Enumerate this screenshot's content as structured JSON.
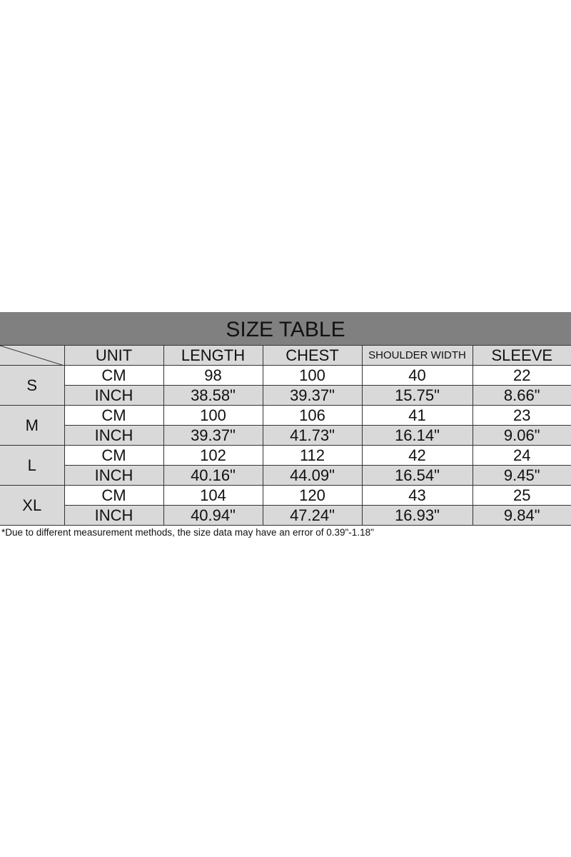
{
  "title": "SIZE TABLE",
  "headers": [
    "UNIT",
    "LENGTH",
    "CHEST",
    "SHOULDER WIDTH",
    "SLEEVE"
  ],
  "rows": [
    {
      "size": "S",
      "cm": {
        "unit": "CM",
        "length": "98",
        "chest": "100",
        "shoulder": "40",
        "sleeve": "22"
      },
      "inch": {
        "unit": "INCH",
        "length": "38.58\"",
        "chest": "39.37\"",
        "shoulder": "15.75\"",
        "sleeve": "8.66\""
      }
    },
    {
      "size": "M",
      "cm": {
        "unit": "CM",
        "length": "100",
        "chest": "106",
        "shoulder": "41",
        "sleeve": "23"
      },
      "inch": {
        "unit": "INCH",
        "length": "39.37\"",
        "chest": "41.73\"",
        "shoulder": "16.14\"",
        "sleeve": "9.06\""
      }
    },
    {
      "size": "L",
      "cm": {
        "unit": "CM",
        "length": "102",
        "chest": "112",
        "shoulder": "42",
        "sleeve": "24"
      },
      "inch": {
        "unit": "INCH",
        "length": "40.16\"",
        "chest": "44.09\"",
        "shoulder": "16.54\"",
        "sleeve": "9.45\""
      }
    },
    {
      "size": "XL",
      "cm": {
        "unit": "CM",
        "length": "104",
        "chest": "120",
        "shoulder": "43",
        "sleeve": "25"
      },
      "inch": {
        "unit": "INCH",
        "length": "40.94\"",
        "chest": "47.24\"",
        "shoulder": "16.93\"",
        "sleeve": "9.84\""
      }
    }
  ],
  "note": "*Due to different measurement methods, the size data may have an error of 0.39\"-1.18\""
}
